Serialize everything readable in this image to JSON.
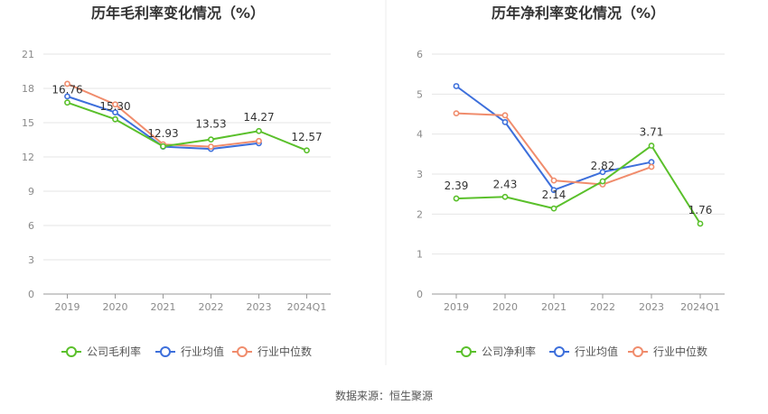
{
  "source_label": "数据来源：恒生聚源",
  "chart_data": [
    {
      "type": "line",
      "title": "历年毛利率变化情况（%）",
      "categories": [
        "2019",
        "2020",
        "2021",
        "2022",
        "2023",
        "2024Q1"
      ],
      "ylim": [
        0,
        21
      ],
      "yticks": [
        "0",
        "3",
        "6",
        "9",
        "12",
        "15",
        "18",
        "21"
      ],
      "grid": true,
      "legend_position": "bottom",
      "series": [
        {
          "name": "公司毛利率",
          "color": "#5ac02b",
          "values": [
            16.76,
            15.3,
            12.93,
            13.53,
            14.27,
            12.57
          ],
          "labels": [
            "16.76",
            "15.30",
            "12.93",
            "13.53",
            "14.27",
            "12.57"
          ]
        },
        {
          "name": "行业均值",
          "color": "#3d6fdb",
          "values": [
            17.3,
            15.9,
            12.9,
            12.7,
            13.2,
            null
          ]
        },
        {
          "name": "行业中位数",
          "color": "#f08c6c",
          "values": [
            18.4,
            16.6,
            13.1,
            12.9,
            13.4,
            null
          ]
        }
      ]
    },
    {
      "type": "line",
      "title": "历年净利率变化情况（%）",
      "categories": [
        "2019",
        "2020",
        "2021",
        "2022",
        "2023",
        "2024Q1"
      ],
      "ylim": [
        0,
        6
      ],
      "yticks": [
        "0",
        "1",
        "2",
        "3",
        "4",
        "5",
        "6"
      ],
      "grid": true,
      "legend_position": "bottom",
      "series": [
        {
          "name": "公司净利率",
          "color": "#5ac02b",
          "values": [
            2.39,
            2.43,
            2.14,
            2.82,
            3.71,
            1.76
          ],
          "labels": [
            "2.39",
            "2.43",
            "2.14",
            "2.82",
            "3.71",
            "1.76"
          ]
        },
        {
          "name": "行业均值",
          "color": "#3d6fdb",
          "values": [
            5.2,
            4.3,
            2.6,
            3.05,
            3.3,
            null
          ]
        },
        {
          "name": "行业中位数",
          "color": "#f08c6c",
          "values": [
            4.52,
            4.47,
            2.84,
            2.74,
            3.18,
            null
          ]
        }
      ]
    }
  ]
}
